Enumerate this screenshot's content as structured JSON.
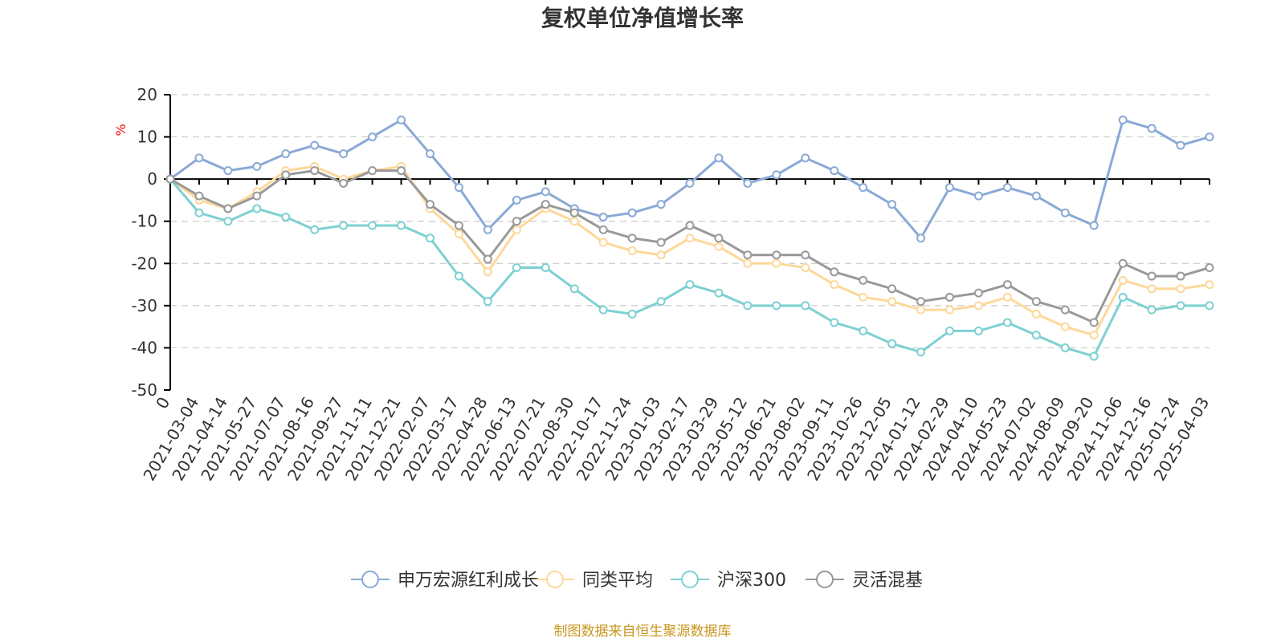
{
  "chart_data": {
    "type": "line",
    "title": "复权单位净值增长率",
    "ylabel": "%",
    "ylim": [
      -50,
      20
    ],
    "yticks": [
      "20",
      "10",
      "0",
      "-10",
      "-20",
      "-30",
      "-40",
      "-50"
    ],
    "ytick_values": [
      20,
      10,
      0,
      -10,
      -20,
      -30,
      -40,
      -50
    ],
    "grid": true,
    "legend_position": "bottom-center",
    "x": [
      "0",
      "2021-03-04",
      "2021-04-14",
      "2021-05-27",
      "2021-07-07",
      "2021-08-16",
      "2021-09-27",
      "2021-11-11",
      "2021-12-21",
      "2022-02-07",
      "2022-03-17",
      "2022-04-28",
      "2022-06-13",
      "2022-07-21",
      "2022-08-30",
      "2022-10-17",
      "2022-11-24",
      "2023-01-03",
      "2023-02-17",
      "2023-03-29",
      "2023-05-12",
      "2023-06-21",
      "2023-08-02",
      "2023-09-11",
      "2023-10-26",
      "2023-12-05",
      "2024-01-12",
      "2024-02-29",
      "2024-04-10",
      "2024-05-23",
      "2024-07-02",
      "2024-08-09",
      "2024-09-20",
      "2024-11-06",
      "2024-12-16",
      "2025-01-24",
      "2025-04-03"
    ],
    "series": [
      {
        "name": "申万宏源红利成长",
        "color": "#8aa9d6",
        "values": [
          0,
          5,
          2,
          3,
          6,
          8,
          6,
          10,
          14,
          6,
          -2,
          -12,
          -5,
          -3,
          -7,
          -9,
          -8,
          -6,
          -1,
          5,
          -1,
          1,
          5,
          2,
          -2,
          -6,
          -14,
          -2,
          -4,
          -2,
          -4,
          -8,
          -11,
          14,
          12,
          8,
          10
        ]
      },
      {
        "name": "同类平均",
        "color": "#fdd89a",
        "values": [
          0,
          -5,
          -7,
          -3,
          2,
          3,
          0,
          2,
          3,
          -7,
          -13,
          -22,
          -12,
          -7,
          -10,
          -15,
          -17,
          -18,
          -14,
          -16,
          -20,
          -20,
          -21,
          -25,
          -28,
          -29,
          -31,
          -31,
          -30,
          -28,
          -32,
          -35,
          -37,
          -24,
          -26,
          -26,
          -25
        ]
      },
      {
        "name": "沪深300",
        "color": "#7dd0d2",
        "values": [
          0,
          -8,
          -10,
          -7,
          -9,
          -12,
          -11,
          -11,
          -11,
          -14,
          -23,
          -29,
          -21,
          -21,
          -26,
          -31,
          -32,
          -29,
          -25,
          -27,
          -30,
          -30,
          -30,
          -34,
          -36,
          -39,
          -41,
          -36,
          -36,
          -34,
          -37,
          -40,
          -42,
          -28,
          -31,
          -30,
          -30
        ]
      },
      {
        "name": "灵活混基",
        "color": "#999999",
        "values": [
          0,
          -4,
          -7,
          -4,
          1,
          2,
          -1,
          2,
          2,
          -6,
          -11,
          -19,
          -10,
          -6,
          -8,
          -12,
          -14,
          -15,
          -11,
          -14,
          -18,
          -18,
          -18,
          -22,
          -24,
          -26,
          -29,
          -28,
          -27,
          -25,
          -29,
          -31,
          -34,
          -20,
          -23,
          -23,
          -21
        ]
      }
    ]
  },
  "footer": {
    "source": "制图数据来自恒生聚源数据库"
  }
}
